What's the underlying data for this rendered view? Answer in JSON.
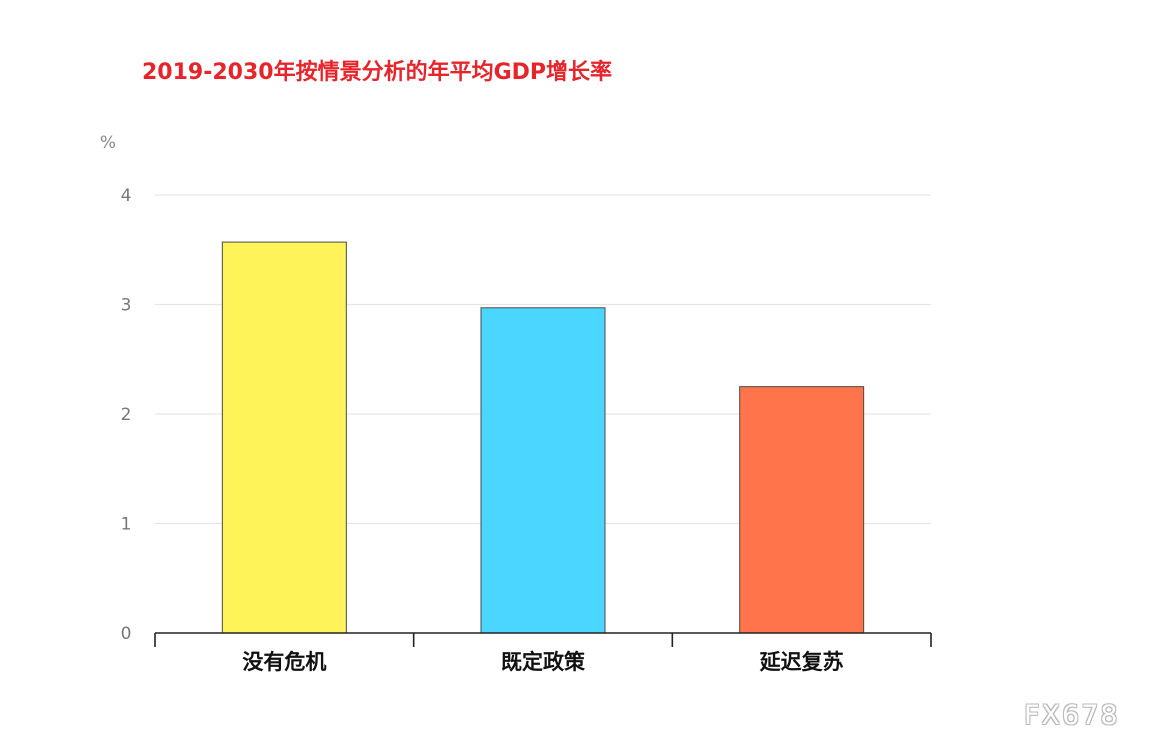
{
  "chart_data": {
    "type": "bar",
    "title": "2019-2030年按情景分析的年平均GDP增长率",
    "ylabel": "%",
    "xlabel": "",
    "categories": [
      "没有危机",
      "既定政策",
      "延迟复苏"
    ],
    "values": [
      3.57,
      2.97,
      2.25
    ],
    "colors": [
      "#fff35a",
      "#4ad6fe",
      "#ff744b"
    ],
    "ylim": [
      0,
      4
    ],
    "yticks": [
      0,
      1,
      2,
      3,
      4
    ],
    "grid": true,
    "legend": "none"
  },
  "watermark": "FX678"
}
